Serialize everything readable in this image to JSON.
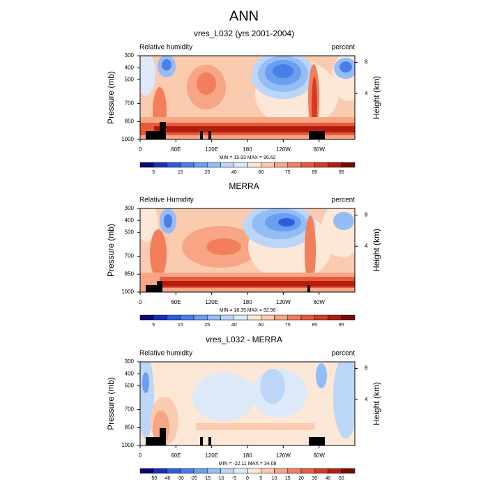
{
  "title": "ANN",
  "colors": [
    "#08087a",
    "#1a2fb8",
    "#2e5ce0",
    "#4a7fe8",
    "#6a9ef0",
    "#93bdf5",
    "#bcd6f7",
    "#dde9f8",
    "#fde7d6",
    "#fbcbb0",
    "#f7a585",
    "#f27e5c",
    "#e85a3a",
    "#d63a22",
    "#b31d10",
    "#7a0a06"
  ],
  "panels": [
    {
      "type": "contour",
      "title": "vres_L032 (yrs 2001-2004)",
      "left_label": "Relative humidity",
      "right_label": "percent",
      "ylabel": "Pressure (mb)",
      "y2label": "Height (km)",
      "xlim": [
        0,
        360
      ],
      "xticks": [
        0,
        {
          "value": 60,
          "label": "60E"
        },
        {
          "value": 120,
          "label": "120E"
        },
        180,
        {
          "value": 240,
          "label": "120W"
        },
        {
          "value": 300,
          "label": "60W"
        }
      ],
      "ylim": [
        1000,
        300
      ],
      "yticks": [
        300,
        400,
        500,
        700,
        850,
        1000
      ],
      "y2ticks": [
        8,
        4
      ],
      "stats": "MIN = 15.93  MAX = 95.62",
      "colorbar": [
        5,
        15,
        25,
        40,
        60,
        75,
        85,
        95
      ]
    },
    {
      "type": "contour",
      "title": "MERRA",
      "left_label": "Relative Humidity",
      "right_label": "percent",
      "ylabel": "Pressure (mb)",
      "y2label": "Height (km)",
      "xlim": [
        0,
        360
      ],
      "xticks": [
        0,
        {
          "value": 60,
          "label": "60E"
        },
        {
          "value": 120,
          "label": "120E"
        },
        180,
        {
          "value": 240,
          "label": "120W"
        },
        {
          "value": 300,
          "label": "60W"
        }
      ],
      "ylim": [
        1000,
        300
      ],
      "yticks": [
        300,
        400,
        500,
        700,
        850,
        1000
      ],
      "y2ticks": [
        8,
        4
      ],
      "stats": "MIN = 18.35  MAX = 92.96",
      "colorbar": [
        5,
        15,
        25,
        40,
        60,
        75,
        85,
        95
      ]
    },
    {
      "type": "contour",
      "title": "vres_L032 - MERRA",
      "left_label": "Relative humidity",
      "right_label": "percent",
      "ylabel": "Pressure (mb)",
      "y2label": "Height (km)",
      "xlim": [
        0,
        360
      ],
      "xticks": [
        0,
        {
          "value": 60,
          "label": "60E"
        },
        {
          "value": 120,
          "label": "120E"
        },
        180,
        {
          "value": 240,
          "label": "120W"
        },
        {
          "value": 300,
          "label": "60W"
        }
      ],
      "ylim": [
        1000,
        300
      ],
      "yticks": [
        300,
        400,
        500,
        700,
        850,
        1000
      ],
      "y2ticks": [
        8,
        4
      ],
      "stats": "MIN = -22.11  MAX = 34.08",
      "colorbar": [
        -50,
        -40,
        -30,
        -20,
        -15,
        -10,
        -5,
        0,
        5,
        10,
        15,
        20,
        30,
        40,
        50
      ]
    }
  ]
}
